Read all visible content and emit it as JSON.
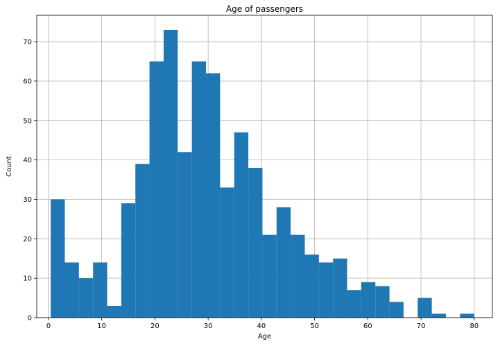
{
  "chart_data": {
    "type": "bar",
    "title": "Age of passengers",
    "xlabel": "Age",
    "ylabel": "Count",
    "xlim": [
      -2.2,
      83.4
    ],
    "ylim": [
      0,
      76.7
    ],
    "grid": true,
    "x_ticks": [
      0,
      10,
      20,
      30,
      40,
      50,
      60,
      70,
      80
    ],
    "y_ticks": [
      0,
      10,
      20,
      30,
      40,
      50,
      60,
      70
    ],
    "bin_edges": [
      0.42,
      3.07,
      5.72,
      8.38,
      11.03,
      13.68,
      16.33,
      18.98,
      21.64,
      24.29,
      26.94,
      29.59,
      32.24,
      34.9,
      37.55,
      40.2,
      42.85,
      45.5,
      48.16,
      50.81,
      53.46,
      56.11,
      58.76,
      61.42,
      64.07,
      66.72,
      69.37,
      72.02,
      74.68,
      77.33,
      79.98
    ],
    "values": [
      30,
      14,
      10,
      14,
      3,
      29,
      39,
      65,
      73,
      42,
      65,
      62,
      33,
      47,
      38,
      21,
      28,
      21,
      16,
      14,
      15,
      7,
      9,
      8,
      4,
      0,
      5,
      1,
      0,
      1
    ],
    "bar_color": "#1f77b4"
  }
}
